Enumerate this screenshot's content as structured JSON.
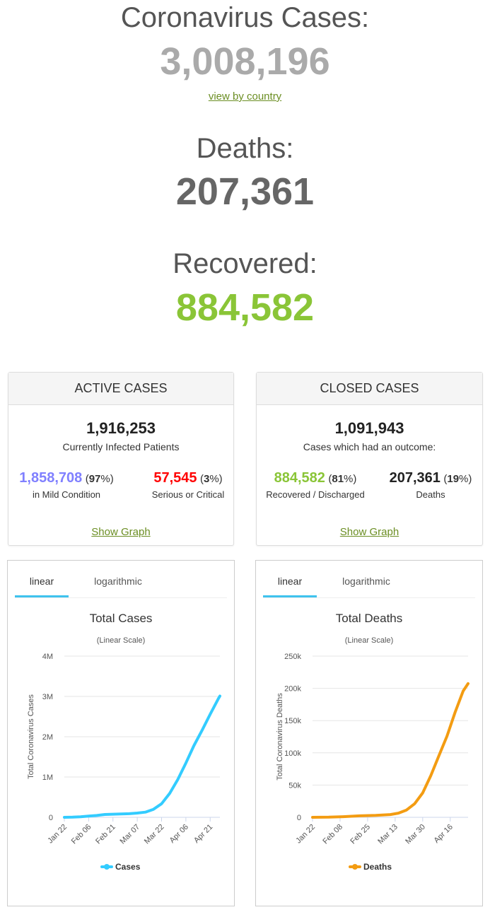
{
  "headline": {
    "cases_label": "Coronavirus Cases:",
    "cases_value": "3,008,196",
    "view_link": "view by country",
    "deaths_label": "Deaths:",
    "deaths_value": "207,361",
    "recovered_label": "Recovered:",
    "recovered_value": "884,582"
  },
  "colors": {
    "cases_gray": "#aaaaaa",
    "deaths_gray": "#666666",
    "recovered_green": "#8ac537",
    "mild_purple": "#8080ff",
    "serious_red": "#ff0000",
    "link_green": "#6b8e23",
    "cases_line": "#33ccff",
    "deaths_line": "#f39c12"
  },
  "active": {
    "header": "ACTIVE CASES",
    "total": "1,916,253",
    "total_label": "Currently Infected Patients",
    "mild_value": "1,858,708",
    "mild_pct_open": "(",
    "mild_pct": "97",
    "mild_pct_close": "%)",
    "mild_label": "in Mild Condition",
    "serious_value": "57,545",
    "serious_pct_open": "(",
    "serious_pct": "3",
    "serious_pct_close": "%)",
    "serious_label": "Serious or Critical",
    "show_graph": "Show Graph"
  },
  "closed": {
    "header": "CLOSED CASES",
    "total": "1,091,943",
    "total_label": "Cases which had an outcome:",
    "recovered_value": "884,582",
    "recovered_pct_open": "(",
    "recovered_pct": "81",
    "recovered_pct_close": "%)",
    "recovered_label": "Recovered / Discharged",
    "deaths_value": "207,361",
    "deaths_pct_open": "(",
    "deaths_pct": "19",
    "deaths_pct_close": "%)",
    "deaths_label": "Deaths",
    "show_graph": "Show Graph"
  },
  "tabs": {
    "linear": "linear",
    "log": "logarithmic"
  },
  "chart_data": [
    {
      "type": "line",
      "title": "Total Cases",
      "subtitle": "(Linear Scale)",
      "ylabel": "Total Coronavirus Cases",
      "ylim": [
        0,
        4000000
      ],
      "yticks": [
        0,
        1000000,
        2000000,
        3000000,
        4000000
      ],
      "ytick_labels": [
        "0",
        "1M",
        "2M",
        "3M",
        "4M"
      ],
      "x_start": "2020-01-22",
      "x_end": "2020-04-27",
      "xtick_labels": [
        "Jan 22",
        "Feb 06",
        "Feb 21",
        "Mar 07",
        "Mar 22",
        "Apr 06",
        "Apr 21"
      ],
      "xtick_dates": [
        "2020-01-22",
        "2020-02-06",
        "2020-02-21",
        "2020-03-07",
        "2020-03-22",
        "2020-04-06",
        "2020-04-21"
      ],
      "legend": "bottom",
      "series": [
        {
          "name": "Cases",
          "x": [
            "2020-01-22",
            "2020-01-27",
            "2020-02-01",
            "2020-02-06",
            "2020-02-11",
            "2020-02-16",
            "2020-02-21",
            "2020-02-26",
            "2020-03-02",
            "2020-03-07",
            "2020-03-12",
            "2020-03-17",
            "2020-03-22",
            "2020-03-27",
            "2020-04-01",
            "2020-04-06",
            "2020-04-11",
            "2020-04-16",
            "2020-04-21",
            "2020-04-26",
            "2020-04-27"
          ],
          "y": [
            555,
            2900,
            12000,
            31000,
            45000,
            70000,
            77000,
            82000,
            90000,
            105000,
            128000,
            198000,
            337000,
            595000,
            936000,
            1347000,
            1780000,
            2160000,
            2560000,
            2940000,
            3008196
          ]
        }
      ]
    },
    {
      "type": "line",
      "title": "Total Deaths",
      "subtitle": "(Linear Scale)",
      "ylabel": "Total Coronavirus Deaths",
      "ylim": [
        0,
        250000
      ],
      "yticks": [
        0,
        50000,
        100000,
        150000,
        200000,
        250000
      ],
      "ytick_labels": [
        "0",
        "50k",
        "100k",
        "150k",
        "200k",
        "250k"
      ],
      "x_start": "2020-01-22",
      "x_end": "2020-04-27",
      "xtick_labels": [
        "Jan 22",
        "Feb 08",
        "Feb 25",
        "Mar 13",
        "Mar 30",
        "Apr 16"
      ],
      "xtick_dates": [
        "2020-01-22",
        "2020-02-08",
        "2020-02-25",
        "2020-03-13",
        "2020-03-30",
        "2020-04-16"
      ],
      "legend": "bottom",
      "series": [
        {
          "name": "Deaths",
          "x": [
            "2020-01-22",
            "2020-02-01",
            "2020-02-10",
            "2020-02-20",
            "2020-03-01",
            "2020-03-10",
            "2020-03-15",
            "2020-03-20",
            "2020-03-25",
            "2020-03-30",
            "2020-04-04",
            "2020-04-09",
            "2020-04-14",
            "2020-04-19",
            "2020-04-24",
            "2020-04-27"
          ],
          "y": [
            17,
            259,
            1013,
            2250,
            3000,
            4300,
            6500,
            11300,
            21000,
            37800,
            64700,
            95700,
            126000,
            163000,
            196000,
            207361
          ]
        }
      ]
    }
  ]
}
